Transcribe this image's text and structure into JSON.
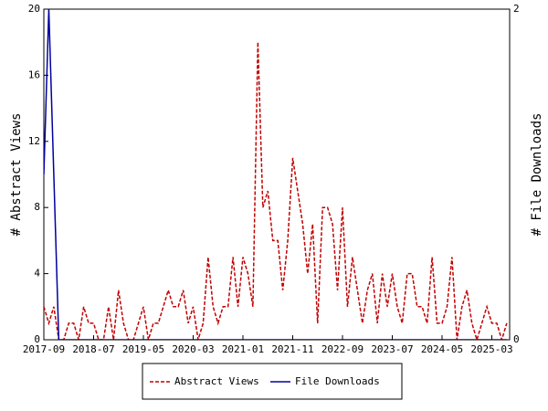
{
  "chart_data": {
    "type": "line",
    "x": [
      "2017-09",
      "2017-10",
      "2017-11",
      "2017-12",
      "2018-01",
      "2018-02",
      "2018-03",
      "2018-04",
      "2018-05",
      "2018-06",
      "2018-07",
      "2018-08",
      "2018-09",
      "2018-10",
      "2018-11",
      "2018-12",
      "2019-01",
      "2019-02",
      "2019-03",
      "2019-04",
      "2019-05",
      "2019-06",
      "2019-07",
      "2019-08",
      "2019-09",
      "2019-10",
      "2019-11",
      "2019-12",
      "2020-01",
      "2020-02",
      "2020-03",
      "2020-04",
      "2020-05",
      "2020-06",
      "2020-07",
      "2020-08",
      "2020-09",
      "2020-10",
      "2020-11",
      "2020-12",
      "2021-01",
      "2021-02",
      "2021-03",
      "2021-04",
      "2021-05",
      "2021-06",
      "2021-07",
      "2021-08",
      "2021-09",
      "2021-10",
      "2021-11",
      "2021-12",
      "2022-01",
      "2022-02",
      "2022-03",
      "2022-04",
      "2022-05",
      "2022-06",
      "2022-07",
      "2022-08",
      "2022-09",
      "2022-10",
      "2022-11",
      "2022-12",
      "2023-01",
      "2023-02",
      "2023-03",
      "2023-04",
      "2023-05",
      "2023-06",
      "2023-07",
      "2023-08",
      "2023-09",
      "2023-10",
      "2023-11",
      "2023-12",
      "2024-01",
      "2024-02",
      "2024-03",
      "2024-04",
      "2024-05",
      "2024-06",
      "2024-07",
      "2024-08",
      "2024-09",
      "2024-10",
      "2024-11",
      "2024-12",
      "2025-01",
      "2025-02",
      "2025-03",
      "2025-04",
      "2025-05",
      "2025-06"
    ],
    "xticks": [
      "2017-09",
      "2018-07",
      "2019-05",
      "2020-03",
      "2021-01",
      "2021-11",
      "2022-09",
      "2023-07",
      "2024-05",
      "2025-03"
    ],
    "ylabel": "# Abstract Views",
    "y2label": "# File Downloads",
    "ylim": [
      0,
      20
    ],
    "yticks": [
      0,
      4,
      8,
      12,
      16,
      20
    ],
    "y2lim": [
      0,
      2
    ],
    "y2ticks": [
      0,
      2
    ],
    "legend": "bottom",
    "series": [
      {
        "name": "Abstract Views",
        "color": "#c00000",
        "axis": "y",
        "values": [
          2,
          1,
          2,
          0,
          0,
          1,
          1,
          0,
          2,
          1,
          1,
          0,
          0,
          2,
          0,
          3,
          1,
          0,
          0,
          1,
          2,
          0,
          1,
          1,
          2,
          3,
          2,
          2,
          3,
          1,
          2,
          0,
          1,
          5,
          2,
          1,
          2,
          2,
          5,
          2,
          5,
          4,
          2,
          18,
          8,
          9,
          6,
          6,
          3,
          6,
          11,
          9,
          7,
          4,
          7,
          1,
          8,
          8,
          7,
          3,
          8,
          2,
          5,
          3,
          1,
          3,
          4,
          1,
          4,
          2,
          4,
          2,
          1,
          4,
          4,
          2,
          2,
          1,
          5,
          1,
          1,
          2,
          5,
          0,
          2,
          3,
          1,
          0,
          1,
          2,
          1,
          1,
          0,
          1
        ]
      },
      {
        "name": "File Downloads",
        "color": "#0000a0",
        "axis": "y2",
        "values": [
          1,
          2,
          1,
          0,
          0,
          0,
          0,
          0,
          0,
          0,
          0,
          0,
          0,
          0,
          0,
          0,
          0,
          0,
          0,
          0,
          0,
          0,
          0,
          0,
          0,
          0,
          0,
          0,
          0,
          0,
          0,
          0,
          0,
          0,
          0,
          0,
          0,
          0,
          0,
          0,
          0,
          0,
          0,
          0,
          0,
          0,
          0,
          0,
          0,
          0,
          0,
          0,
          0,
          0,
          0,
          0,
          0,
          0,
          0,
          0,
          0,
          0,
          0,
          0,
          0,
          0,
          0,
          0,
          0,
          0,
          0,
          0,
          0,
          0,
          0,
          0,
          0,
          0,
          0,
          0,
          0,
          0,
          0,
          0,
          0,
          0,
          0,
          0,
          0,
          0,
          0,
          0,
          0,
          0
        ]
      }
    ]
  }
}
